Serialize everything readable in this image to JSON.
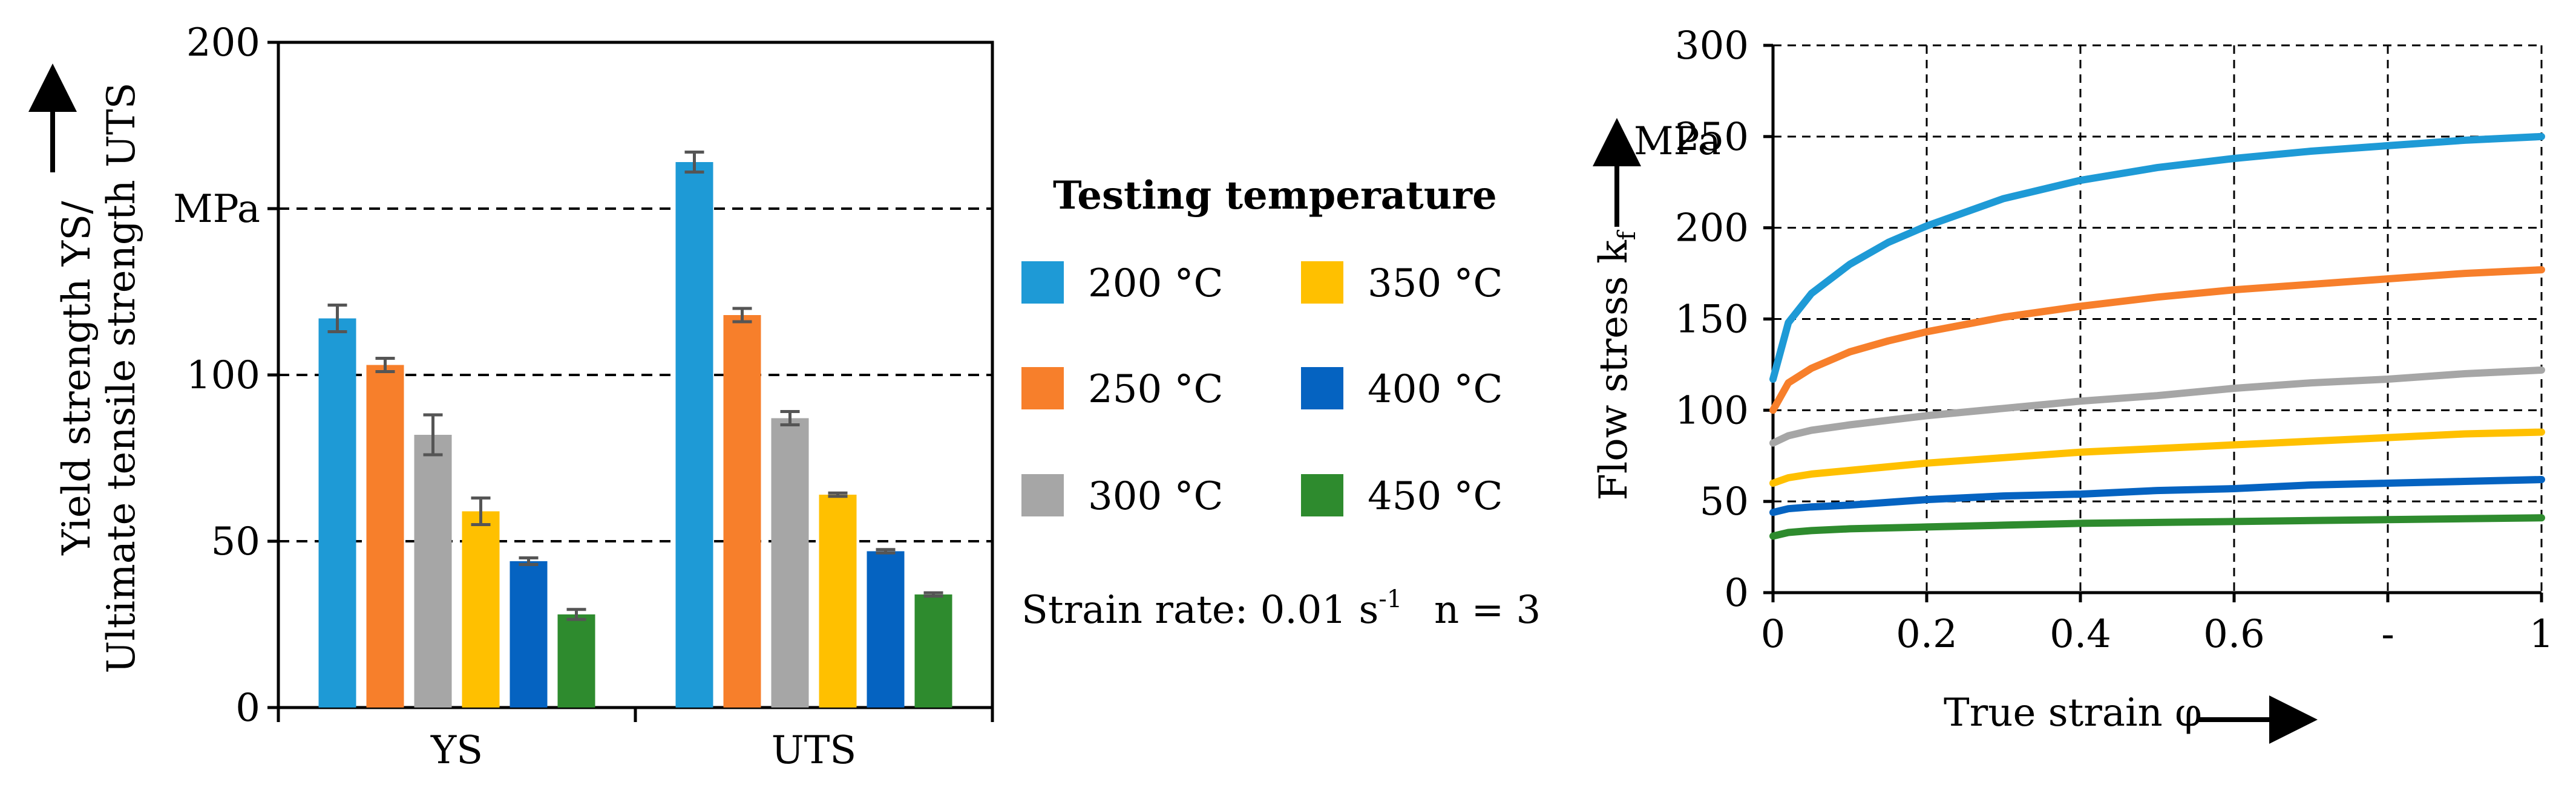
{
  "legend": {
    "title": "Testing temperature",
    "note_prefix": "Strain rate: 0.01 s",
    "note_sup": "-1",
    "note_n": "n = 3"
  },
  "chart_data": [
    {
      "type": "bar",
      "title": "",
      "categories": [
        "YS",
        "UTS"
      ],
      "ylabel_line1": "Yield strength YS/",
      "ylabel_line2": "Ultimate tensile strength UTS",
      "yunit": "MPa",
      "ylim": [
        0,
        200
      ],
      "yticks": [
        "0",
        "50",
        "100",
        "MPa",
        "200"
      ],
      "grid": "horizontal dashed",
      "series": [
        {
          "name": "200 °C",
          "color": "#1e9ad6",
          "values": [
            117,
            164
          ],
          "errors": [
            4,
            3
          ]
        },
        {
          "name": "250 °C",
          "color": "#f77f2b",
          "values": [
            103,
            118
          ],
          "errors": [
            2,
            2
          ]
        },
        {
          "name": "300 °C",
          "color": "#a6a6a6",
          "values": [
            82,
            87
          ],
          "errors": [
            6,
            2
          ]
        },
        {
          "name": "350 °C",
          "color": "#ffc000",
          "values": [
            59,
            64
          ],
          "errors": [
            4,
            0.5
          ]
        },
        {
          "name": "400 °C",
          "color": "#0563c1",
          "values": [
            44,
            47
          ],
          "errors": [
            1,
            0.5
          ]
        },
        {
          "name": "450 °C",
          "color": "#2e8b2e",
          "values": [
            28,
            34
          ],
          "errors": [
            1.5,
            0.5
          ]
        }
      ]
    },
    {
      "type": "line",
      "title": "",
      "xlabel": "True strain φ",
      "ylabel": "Flow stress k",
      "ylabel_sub": "f",
      "yunit": "MPa",
      "xlim": [
        0,
        1
      ],
      "ylim": [
        0,
        300
      ],
      "xticks": [
        "0",
        "0.2",
        "0.4",
        "0.6",
        "-",
        "1"
      ],
      "yticks": [
        "0",
        "50",
        "100",
        "150",
        "200",
        "250",
        "300"
      ],
      "grid": "dashed",
      "series": [
        {
          "name": "200 °C",
          "color": "#1e9ad6",
          "x": [
            0.0,
            0.02,
            0.05,
            0.1,
            0.15,
            0.2,
            0.3,
            0.4,
            0.5,
            0.6,
            0.7,
            0.8,
            0.9,
            1.0
          ],
          "y": [
            117,
            148,
            164,
            180,
            192,
            201,
            216,
            226,
            233,
            238,
            242,
            245,
            248,
            250
          ]
        },
        {
          "name": "250 °C",
          "color": "#f77f2b",
          "x": [
            0.0,
            0.02,
            0.05,
            0.1,
            0.15,
            0.2,
            0.3,
            0.4,
            0.5,
            0.6,
            0.7,
            0.8,
            0.9,
            1.0
          ],
          "y": [
            100,
            115,
            123,
            132,
            138,
            143,
            151,
            157,
            162,
            166,
            169,
            172,
            175,
            177
          ]
        },
        {
          "name": "300 °C",
          "color": "#a6a6a6",
          "x": [
            0.0,
            0.02,
            0.05,
            0.1,
            0.2,
            0.3,
            0.4,
            0.5,
            0.6,
            0.7,
            0.8,
            0.9,
            1.0
          ],
          "y": [
            82,
            86,
            89,
            92,
            97,
            101,
            105,
            108,
            112,
            115,
            117,
            120,
            122
          ]
        },
        {
          "name": "350 °C",
          "color": "#ffc000",
          "x": [
            0.0,
            0.02,
            0.05,
            0.1,
            0.2,
            0.3,
            0.4,
            0.5,
            0.6,
            0.7,
            0.8,
            0.9,
            1.0
          ],
          "y": [
            60,
            63,
            65,
            67,
            71,
            74,
            77,
            79,
            81,
            83,
            85,
            87,
            88
          ]
        },
        {
          "name": "400 °C",
          "color": "#0563c1",
          "x": [
            0.0,
            0.02,
            0.05,
            0.1,
            0.2,
            0.3,
            0.4,
            0.5,
            0.6,
            0.7,
            0.8,
            0.9,
            1.0
          ],
          "y": [
            44,
            46,
            47,
            48,
            51,
            53,
            54,
            56,
            57,
            59,
            60,
            61,
            62
          ]
        },
        {
          "name": "450 °C",
          "color": "#2e8b2e",
          "x": [
            0.0,
            0.02,
            0.05,
            0.1,
            0.2,
            0.3,
            0.4,
            0.5,
            0.6,
            0.7,
            0.8,
            0.9,
            1.0
          ],
          "y": [
            31,
            33,
            34,
            35,
            36,
            37,
            38,
            38.5,
            39,
            39.5,
            40,
            40.5,
            41
          ]
        }
      ]
    }
  ]
}
